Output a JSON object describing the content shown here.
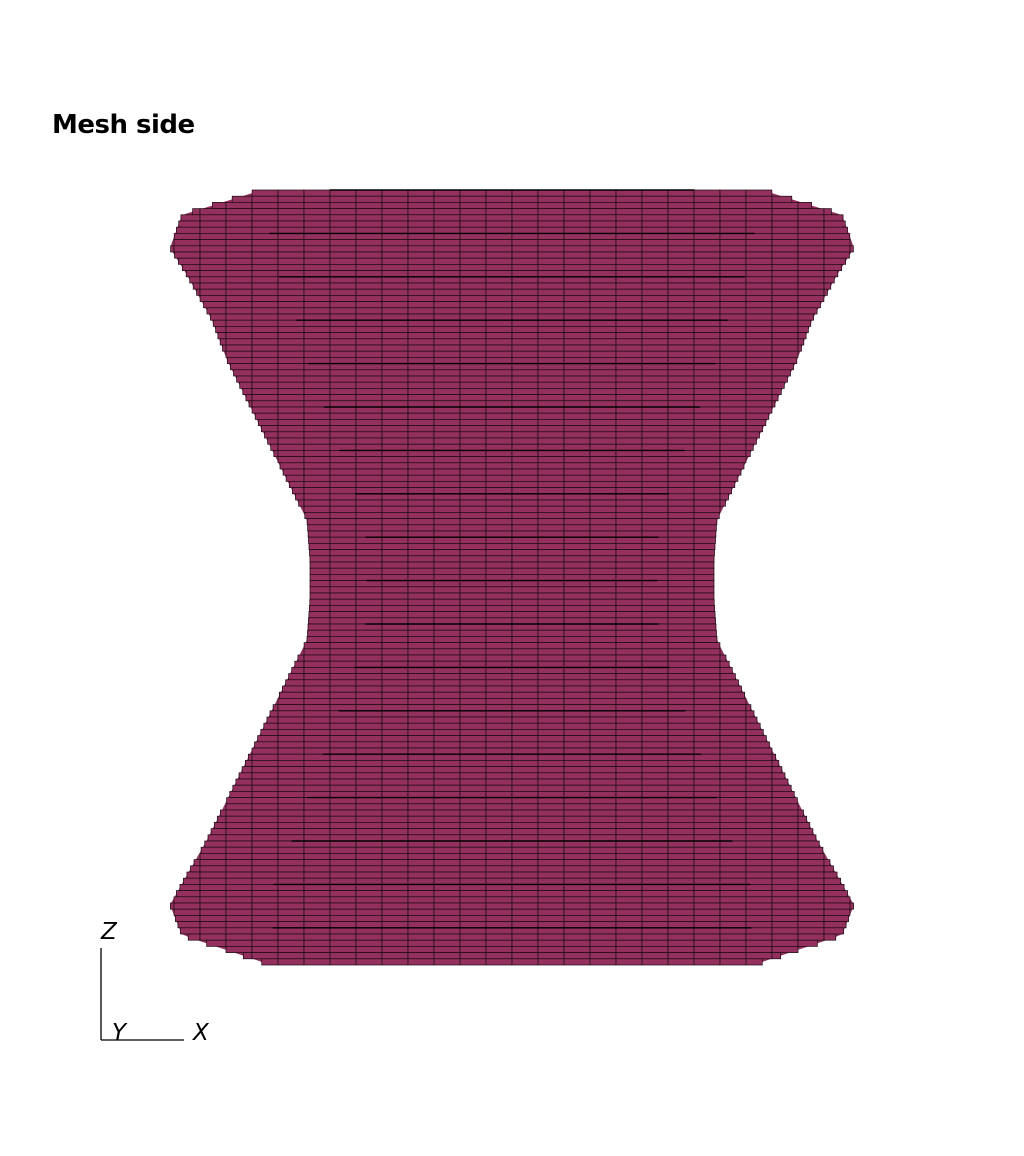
{
  "view": {
    "title": "Mesh side"
  },
  "mesh": {
    "fill_color": "#93305e",
    "edge_color": "#1a0a12",
    "background": "#ffffff"
  },
  "axes": {
    "vertical": "Z",
    "depth": "Y",
    "horizontal": "X",
    "line_color": "#000000"
  }
}
